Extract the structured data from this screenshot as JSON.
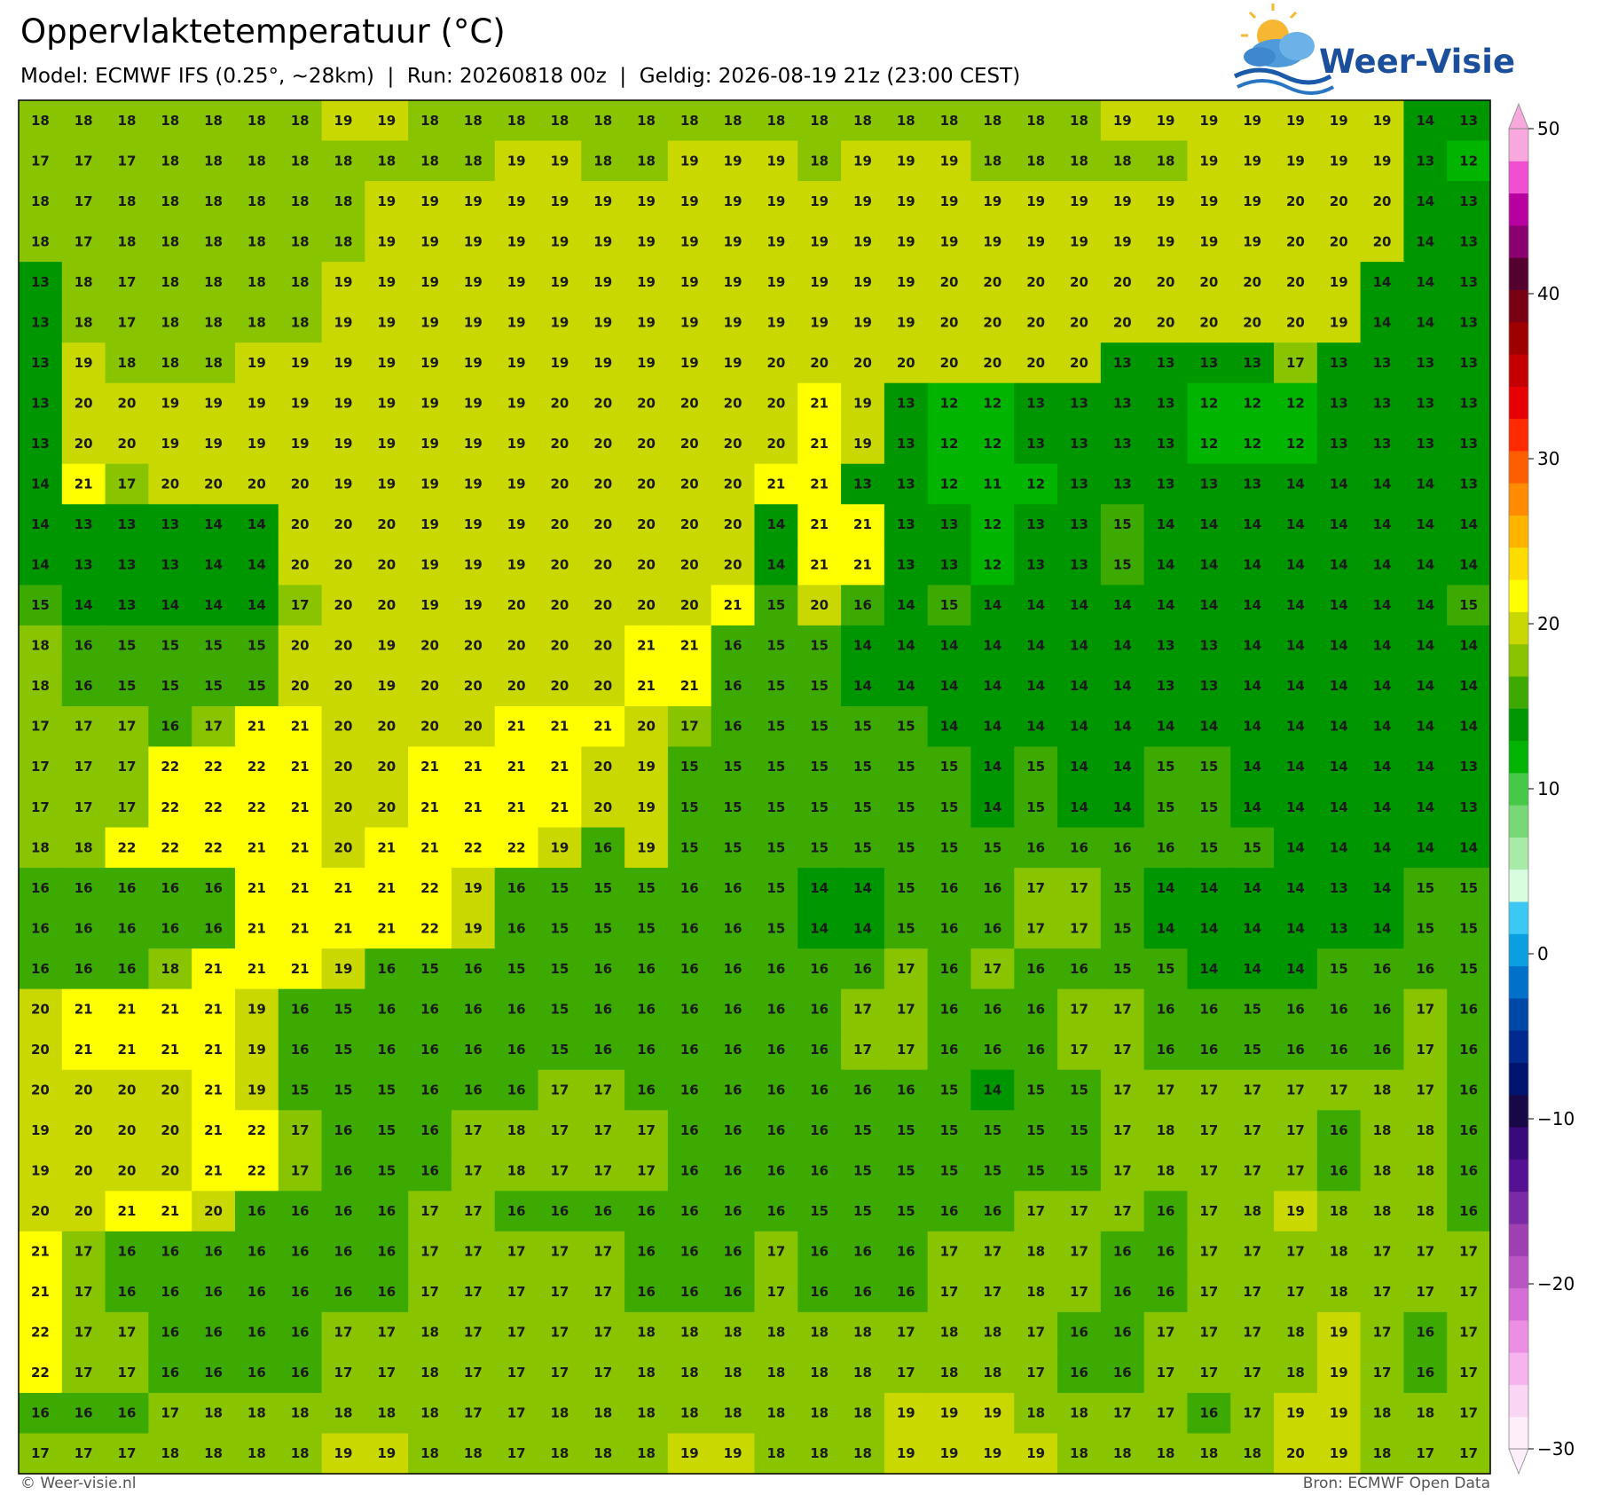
{
  "title": "Oppervlaktetemperatuur (°C)",
  "subtitle": "Model: ECMWF IFS (0.25°, ~28km)  |  Run: 20260818 00z  |  Geldig: 2026-08-19 21z (23:00 CEST)",
  "logo": "Weer-Visie",
  "footer_left": "© Weer-visie.nl",
  "footer_right": "Bron: ECMWF Open Data",
  "grid": {
    "rows": [
      [
        18,
        18,
        18,
        18,
        18,
        18,
        18,
        19,
        19,
        18,
        18,
        18,
        18,
        18,
        18,
        18,
        18,
        18,
        18,
        18,
        18,
        18,
        18,
        18,
        18,
        19,
        19,
        19,
        19,
        19,
        19,
        19,
        14,
        13
      ],
      [
        17,
        17,
        17,
        18,
        18,
        18,
        18,
        18,
        18,
        18,
        18,
        19,
        19,
        18,
        18,
        19,
        19,
        19,
        18,
        19,
        19,
        19,
        18,
        18,
        18,
        18,
        18,
        19,
        19,
        19,
        19,
        19,
        13,
        12
      ],
      [
        18,
        17,
        18,
        18,
        18,
        18,
        18,
        18,
        19,
        19,
        19,
        19,
        19,
        19,
        19,
        19,
        19,
        19,
        19,
        19,
        19,
        19,
        19,
        19,
        19,
        19,
        19,
        19,
        19,
        20,
        20,
        20,
        14,
        13
      ],
      [
        18,
        17,
        18,
        18,
        18,
        18,
        18,
        18,
        19,
        19,
        19,
        19,
        19,
        19,
        19,
        19,
        19,
        19,
        19,
        19,
        19,
        19,
        19,
        19,
        19,
        19,
        19,
        19,
        19,
        20,
        20,
        20,
        14,
        13
      ],
      [
        13,
        18,
        17,
        18,
        18,
        18,
        18,
        19,
        19,
        19,
        19,
        19,
        19,
        19,
        19,
        19,
        19,
        19,
        19,
        19,
        19,
        20,
        20,
        20,
        20,
        20,
        20,
        20,
        20,
        20,
        19,
        14,
        14,
        13
      ],
      [
        13,
        18,
        17,
        18,
        18,
        18,
        18,
        19,
        19,
        19,
        19,
        19,
        19,
        19,
        19,
        19,
        19,
        19,
        19,
        19,
        19,
        20,
        20,
        20,
        20,
        20,
        20,
        20,
        20,
        20,
        19,
        14,
        14,
        13
      ],
      [
        13,
        19,
        18,
        18,
        18,
        19,
        19,
        19,
        19,
        19,
        19,
        19,
        19,
        19,
        19,
        19,
        19,
        20,
        20,
        20,
        20,
        20,
        20,
        20,
        20,
        13,
        13,
        13,
        13,
        17,
        13,
        13,
        13,
        13
      ],
      [
        13,
        20,
        20,
        19,
        19,
        19,
        19,
        19,
        19,
        19,
        19,
        19,
        20,
        20,
        20,
        20,
        20,
        20,
        21,
        19,
        13,
        12,
        12,
        13,
        13,
        13,
        13,
        12,
        12,
        12,
        13,
        13,
        13,
        13
      ],
      [
        13,
        20,
        20,
        19,
        19,
        19,
        19,
        19,
        19,
        19,
        19,
        19,
        20,
        20,
        20,
        20,
        20,
        20,
        21,
        19,
        13,
        12,
        12,
        13,
        13,
        13,
        13,
        12,
        12,
        12,
        13,
        13,
        13,
        13
      ],
      [
        14,
        21,
        17,
        20,
        20,
        20,
        20,
        19,
        19,
        19,
        19,
        19,
        20,
        20,
        20,
        20,
        20,
        21,
        21,
        13,
        13,
        12,
        11,
        12,
        13,
        13,
        13,
        13,
        13,
        14,
        14,
        14,
        14,
        13
      ],
      [
        14,
        13,
        13,
        13,
        14,
        14,
        20,
        20,
        20,
        19,
        19,
        19,
        20,
        20,
        20,
        20,
        20,
        14,
        21,
        21,
        13,
        13,
        12,
        13,
        13,
        15,
        14,
        14,
        14,
        14,
        14,
        14,
        14,
        14
      ],
      [
        14,
        13,
        13,
        13,
        14,
        14,
        20,
        20,
        20,
        19,
        19,
        19,
        20,
        20,
        20,
        20,
        20,
        14,
        21,
        21,
        13,
        13,
        12,
        13,
        13,
        15,
        14,
        14,
        14,
        14,
        14,
        14,
        14,
        14
      ],
      [
        15,
        14,
        13,
        14,
        14,
        14,
        17,
        20,
        20,
        19,
        19,
        20,
        20,
        20,
        20,
        20,
        21,
        15,
        20,
        16,
        14,
        15,
        14,
        14,
        14,
        14,
        14,
        14,
        14,
        14,
        14,
        14,
        14,
        15
      ],
      [
        18,
        16,
        15,
        15,
        15,
        15,
        20,
        20,
        19,
        20,
        20,
        20,
        20,
        20,
        21,
        21,
        16,
        15,
        15,
        14,
        14,
        14,
        14,
        14,
        14,
        14,
        13,
        13,
        14,
        14,
        14,
        14,
        14,
        14
      ],
      [
        18,
        16,
        15,
        15,
        15,
        15,
        20,
        20,
        19,
        20,
        20,
        20,
        20,
        20,
        21,
        21,
        16,
        15,
        15,
        14,
        14,
        14,
        14,
        14,
        14,
        14,
        13,
        13,
        14,
        14,
        14,
        14,
        14,
        14
      ],
      [
        17,
        17,
        17,
        16,
        17,
        21,
        21,
        20,
        20,
        20,
        20,
        21,
        21,
        21,
        20,
        17,
        16,
        15,
        15,
        15,
        15,
        14,
        14,
        14,
        14,
        14,
        14,
        14,
        14,
        14,
        14,
        14,
        14,
        14
      ],
      [
        17,
        17,
        17,
        22,
        22,
        22,
        21,
        20,
        20,
        21,
        21,
        21,
        21,
        20,
        19,
        15,
        15,
        15,
        15,
        15,
        15,
        15,
        14,
        15,
        14,
        14,
        15,
        15,
        14,
        14,
        14,
        14,
        14,
        13
      ],
      [
        17,
        17,
        17,
        22,
        22,
        22,
        21,
        20,
        20,
        21,
        21,
        21,
        21,
        20,
        19,
        15,
        15,
        15,
        15,
        15,
        15,
        15,
        14,
        15,
        14,
        14,
        15,
        15,
        14,
        14,
        14,
        14,
        14,
        13
      ],
      [
        18,
        18,
        22,
        22,
        22,
        21,
        21,
        20,
        21,
        21,
        22,
        22,
        19,
        16,
        19,
        15,
        15,
        15,
        15,
        15,
        15,
        15,
        15,
        16,
        16,
        16,
        16,
        15,
        15,
        14,
        14,
        14,
        14,
        14
      ],
      [
        16,
        16,
        16,
        16,
        16,
        21,
        21,
        21,
        21,
        22,
        19,
        16,
        15,
        15,
        15,
        16,
        16,
        15,
        14,
        14,
        15,
        16,
        16,
        17,
        17,
        15,
        14,
        14,
        14,
        14,
        13,
        14,
        15,
        15
      ],
      [
        16,
        16,
        16,
        16,
        16,
        21,
        21,
        21,
        21,
        22,
        19,
        16,
        15,
        15,
        15,
        16,
        16,
        15,
        14,
        14,
        15,
        16,
        16,
        17,
        17,
        15,
        14,
        14,
        14,
        14,
        13,
        14,
        15,
        15
      ],
      [
        16,
        16,
        16,
        18,
        21,
        21,
        21,
        19,
        16,
        15,
        16,
        15,
        15,
        16,
        16,
        16,
        16,
        16,
        16,
        16,
        17,
        16,
        17,
        16,
        16,
        15,
        15,
        14,
        14,
        14,
        15,
        16,
        16,
        15
      ],
      [
        20,
        21,
        21,
        21,
        21,
        19,
        16,
        15,
        16,
        16,
        16,
        16,
        15,
        16,
        16,
        16,
        16,
        16,
        16,
        17,
        17,
        16,
        16,
        16,
        17,
        17,
        16,
        16,
        15,
        16,
        16,
        16,
        17,
        16
      ],
      [
        20,
        21,
        21,
        21,
        21,
        19,
        16,
        15,
        16,
        16,
        16,
        16,
        15,
        16,
        16,
        16,
        16,
        16,
        16,
        17,
        17,
        16,
        16,
        16,
        17,
        17,
        16,
        16,
        15,
        16,
        16,
        16,
        17,
        16
      ],
      [
        20,
        20,
        20,
        20,
        21,
        19,
        15,
        15,
        15,
        16,
        16,
        16,
        17,
        17,
        16,
        16,
        16,
        16,
        16,
        16,
        16,
        15,
        14,
        15,
        15,
        17,
        17,
        17,
        17,
        17,
        17,
        18,
        17,
        16
      ],
      [
        19,
        20,
        20,
        20,
        21,
        22,
        17,
        16,
        15,
        16,
        17,
        18,
        17,
        17,
        17,
        16,
        16,
        16,
        16,
        15,
        15,
        15,
        15,
        15,
        15,
        17,
        18,
        17,
        17,
        17,
        16,
        18,
        18,
        16
      ],
      [
        19,
        20,
        20,
        20,
        21,
        22,
        17,
        16,
        15,
        16,
        17,
        18,
        17,
        17,
        17,
        16,
        16,
        16,
        16,
        15,
        15,
        15,
        15,
        15,
        15,
        17,
        18,
        17,
        17,
        17,
        16,
        18,
        18,
        16
      ],
      [
        20,
        20,
        21,
        21,
        20,
        16,
        16,
        16,
        16,
        17,
        17,
        16,
        16,
        16,
        16,
        16,
        16,
        16,
        15,
        15,
        15,
        16,
        16,
        17,
        17,
        17,
        16,
        17,
        18,
        19,
        18,
        18,
        18,
        16
      ],
      [
        21,
        17,
        16,
        16,
        16,
        16,
        16,
        16,
        16,
        17,
        17,
        17,
        17,
        17,
        16,
        16,
        16,
        17,
        16,
        16,
        16,
        17,
        17,
        18,
        17,
        16,
        16,
        17,
        17,
        17,
        18,
        17,
        17,
        17
      ],
      [
        21,
        17,
        16,
        16,
        16,
        16,
        16,
        16,
        16,
        17,
        17,
        17,
        17,
        17,
        16,
        16,
        16,
        17,
        16,
        16,
        16,
        17,
        17,
        18,
        17,
        16,
        16,
        17,
        17,
        17,
        18,
        17,
        17,
        17
      ],
      [
        22,
        17,
        17,
        16,
        16,
        16,
        16,
        17,
        17,
        18,
        17,
        17,
        17,
        17,
        18,
        18,
        18,
        18,
        18,
        18,
        17,
        18,
        18,
        17,
        16,
        16,
        17,
        17,
        17,
        18,
        19,
        17,
        16,
        17
      ],
      [
        22,
        17,
        17,
        16,
        16,
        16,
        16,
        17,
        17,
        18,
        17,
        17,
        17,
        17,
        18,
        18,
        18,
        18,
        18,
        18,
        17,
        18,
        18,
        17,
        16,
        16,
        17,
        17,
        17,
        18,
        19,
        17,
        16,
        17
      ],
      [
        16,
        16,
        16,
        17,
        18,
        18,
        18,
        18,
        18,
        18,
        17,
        17,
        18,
        18,
        18,
        18,
        18,
        18,
        18,
        18,
        19,
        19,
        19,
        18,
        18,
        17,
        17,
        16,
        17,
        19,
        19,
        18,
        18,
        17
      ],
      [
        17,
        17,
        17,
        18,
        18,
        18,
        18,
        19,
        19,
        18,
        18,
        17,
        18,
        18,
        18,
        19,
        19,
        18,
        18,
        18,
        19,
        19,
        19,
        19,
        18,
        18,
        18,
        18,
        18,
        20,
        19,
        18,
        17,
        17
      ]
    ]
  },
  "colorbar": {
    "lim": [
      -30,
      50
    ],
    "ticks": [
      {
        "value": -30,
        "label": "−30"
      },
      {
        "value": -20,
        "label": "−20"
      },
      {
        "value": -10,
        "label": "−10"
      },
      0,
      10,
      20,
      30,
      40,
      50
    ],
    "colors": [
      "#fdeefb",
      "#fbd6f4",
      "#f6b3ee",
      "#ea8fe3",
      "#d56fd8",
      "#b957c2",
      "#9c40b2",
      "#7a2aa4",
      "#561093",
      "#3a0a7a",
      "#190848",
      "#001470",
      "#002a8e",
      "#0048a8",
      "#0070c8",
      "#0a9fe0",
      "#3cc8f5",
      "#d8fce0",
      "#a8eaa8",
      "#78d878",
      "#48c848",
      "#00b400",
      "#009600",
      "#3caa00",
      "#88c400",
      "#c8d800",
      "#ffff00",
      "#ffdc00",
      "#ffb400",
      "#ff8c00",
      "#ff5e00",
      "#ff2a00",
      "#e80000",
      "#c40000",
      "#9e0000",
      "#780010",
      "#540030",
      "#8a0070",
      "#b800a0",
      "#f050d0",
      "#f8a8dc"
    ]
  }
}
